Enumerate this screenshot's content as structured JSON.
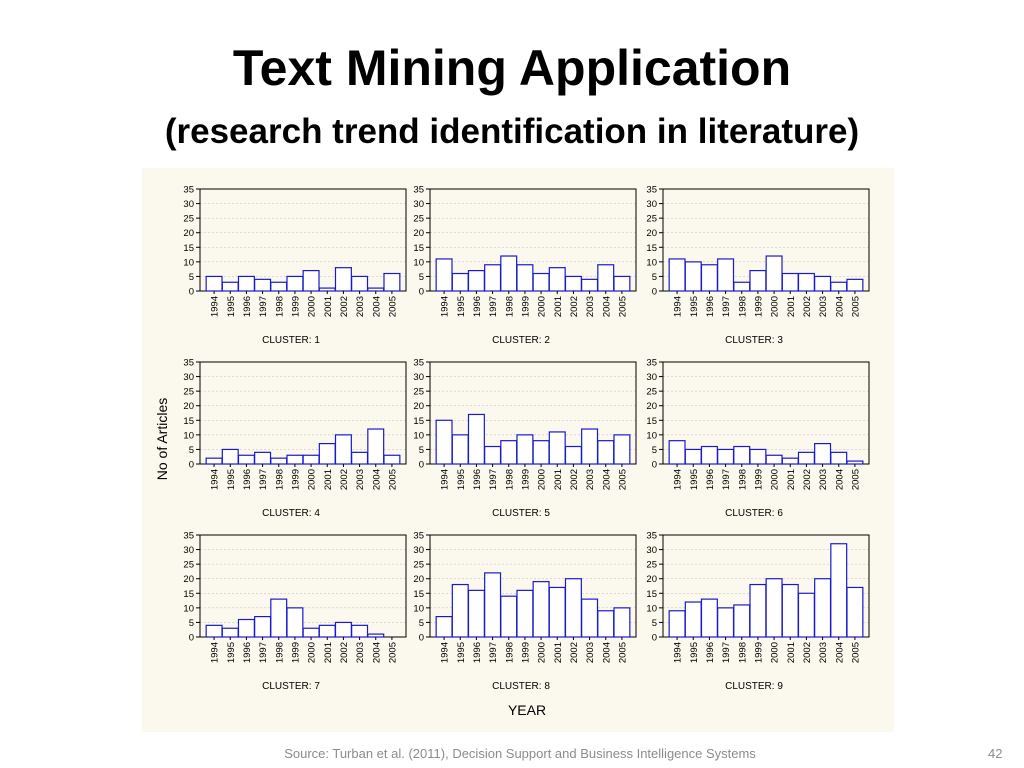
{
  "slide": {
    "title": "Text Mining Application",
    "subtitle": "(research trend identification in literature)",
    "source": "Source:  Turban et al. (2011), Decision Support and Business Intelligence Systems",
    "page_number": "42"
  },
  "colors": {
    "panel_background": "#fbf8ee",
    "bar_stroke": "#1a1acc",
    "bar_fill": "#ffffff",
    "grid": "#c8c8c8"
  },
  "chart_data": {
    "type": "bar",
    "layout": "3x3 small multiples",
    "xlabel": "YEAR",
    "ylabel": "No of Articles",
    "ylim": [
      0,
      35
    ],
    "yticks": [
      0,
      5,
      10,
      15,
      20,
      25,
      30,
      35
    ],
    "grid": true,
    "categories": [
      "1994",
      "1995",
      "1996",
      "1997",
      "1998",
      "1999",
      "2000",
      "2001",
      "2002",
      "2003",
      "2004",
      "2005"
    ],
    "panels": [
      {
        "name": "CLUSTER: 1",
        "values": [
          5,
          3,
          5,
          4,
          3,
          5,
          7,
          1,
          8,
          5,
          1,
          6
        ]
      },
      {
        "name": "CLUSTER: 2",
        "values": [
          11,
          6,
          7,
          9,
          12,
          9,
          6,
          8,
          5,
          4,
          9,
          5
        ]
      },
      {
        "name": "CLUSTER: 3",
        "values": [
          11,
          10,
          9,
          11,
          3,
          7,
          12,
          6,
          6,
          5,
          3,
          4
        ]
      },
      {
        "name": "CLUSTER: 4",
        "values": [
          2,
          5,
          3,
          4,
          2,
          3,
          3,
          7,
          10,
          4,
          12,
          3
        ]
      },
      {
        "name": "CLUSTER: 5",
        "values": [
          15,
          10,
          17,
          6,
          8,
          10,
          8,
          11,
          6,
          12,
          8,
          10
        ]
      },
      {
        "name": "CLUSTER: 6",
        "values": [
          8,
          5,
          6,
          5,
          6,
          5,
          3,
          2,
          4,
          7,
          4,
          1
        ]
      },
      {
        "name": "CLUSTER: 7",
        "values": [
          4,
          3,
          6,
          7,
          13,
          10,
          3,
          4,
          5,
          4,
          1,
          0
        ]
      },
      {
        "name": "CLUSTER: 8",
        "values": [
          7,
          18,
          16,
          22,
          14,
          16,
          19,
          17,
          20,
          13,
          9,
          10
        ]
      },
      {
        "name": "CLUSTER: 9",
        "values": [
          9,
          12,
          13,
          10,
          11,
          18,
          20,
          18,
          15,
          20,
          32,
          17
        ]
      }
    ]
  }
}
